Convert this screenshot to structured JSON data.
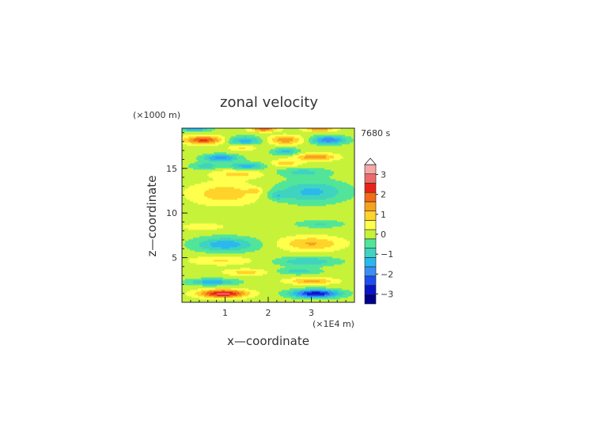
{
  "chart_data": {
    "type": "heatmap",
    "title": "zonal velocity",
    "time_label": "7680 s",
    "xlabel": "x—coordinate",
    "ylabel": "z—coordinate",
    "x_unit": "(×1E4 m)",
    "y_unit": "(×1000 m)",
    "xlim": [
      0,
      4
    ],
    "ylim": [
      0,
      19.5
    ],
    "x_ticks": [
      {
        "value": 1,
        "label": "1"
      },
      {
        "value": 2,
        "label": "2"
      },
      {
        "value": 3,
        "label": "3"
      }
    ],
    "y_ticks": [
      {
        "value": 5,
        "label": "5"
      },
      {
        "value": 10,
        "label": "10"
      },
      {
        "value": 15,
        "label": "15"
      }
    ],
    "colorbar": {
      "levels": [
        -3.5,
        -3,
        -2.5,
        -2,
        -1.5,
        -1,
        -0.5,
        0,
        0.5,
        1,
        1.5,
        2,
        2.5,
        3,
        3.5
      ],
      "colors": [
        "#00008b",
        "#0a14c8",
        "#1e4ef0",
        "#3c8ef5",
        "#2ab8ef",
        "#3fd3c0",
        "#52e59a",
        "#c6f23a",
        "#ffff4d",
        "#ffd32a",
        "#f7a21f",
        "#f46a17",
        "#e8241a",
        "#ee6a6a",
        "#f5a8a8"
      ],
      "tick_labels": [
        {
          "value": 3,
          "label": "3"
        },
        {
          "value": 2,
          "label": "2"
        },
        {
          "value": 1,
          "label": "1"
        },
        {
          "value": 0,
          "label": "0"
        },
        {
          "value": -1,
          "label": "−1"
        },
        {
          "value": -2,
          "label": "−2"
        },
        {
          "value": -3,
          "label": "−3"
        }
      ]
    },
    "blobs": [
      {
        "x": 0.95,
        "z": 1.0,
        "rx": 0.55,
        "rz": 0.45,
        "v": 3.0
      },
      {
        "x": 3.1,
        "z": 1.0,
        "rx": 0.55,
        "rz": 0.45,
        "v": -3.2
      },
      {
        "x": 0.7,
        "z": 2.3,
        "rx": 0.55,
        "rz": 0.35,
        "v": -1.6
      },
      {
        "x": 3.0,
        "z": 2.4,
        "rx": 0.55,
        "rz": 0.35,
        "v": 1.4
      },
      {
        "x": 1.5,
        "z": 3.4,
        "rx": 0.5,
        "rz": 0.35,
        "v": 1.0
      },
      {
        "x": 2.7,
        "z": 3.5,
        "rx": 0.5,
        "rz": 0.35,
        "v": -1.0
      },
      {
        "x": 0.9,
        "z": 4.7,
        "rx": 0.7,
        "rz": 0.5,
        "v": 0.8
      },
      {
        "x": 2.9,
        "z": 4.6,
        "rx": 0.7,
        "rz": 0.5,
        "v": -1.2
      },
      {
        "x": 1.0,
        "z": 6.5,
        "rx": 0.7,
        "rz": 0.8,
        "v": -1.6
      },
      {
        "x": 3.0,
        "z": 6.6,
        "rx": 0.7,
        "rz": 0.8,
        "v": 1.3
      },
      {
        "x": 0.5,
        "z": 8.5,
        "rx": 0.5,
        "rz": 0.4,
        "v": 0.6
      },
      {
        "x": 3.2,
        "z": 8.8,
        "rx": 0.55,
        "rz": 0.4,
        "v": -0.8
      },
      {
        "x": 1.0,
        "z": 12.2,
        "rx": 0.8,
        "rz": 1.2,
        "v": 1.1
      },
      {
        "x": 3.0,
        "z": 12.4,
        "rx": 0.8,
        "rz": 1.2,
        "v": -1.4
      },
      {
        "x": 1.3,
        "z": 14.4,
        "rx": 0.6,
        "rz": 0.5,
        "v": 0.9
      },
      {
        "x": 2.8,
        "z": 14.6,
        "rx": 0.6,
        "rz": 0.5,
        "v": -0.9
      },
      {
        "x": 1.5,
        "z": 15.3,
        "rx": 0.4,
        "rz": 0.4,
        "v": -1.6
      },
      {
        "x": 2.4,
        "z": 15.6,
        "rx": 0.35,
        "rz": 0.4,
        "v": 1.0
      },
      {
        "x": 0.55,
        "z": 15.3,
        "rx": 0.35,
        "rz": 0.4,
        "v": -1.0
      },
      {
        "x": 0.9,
        "z": 16.2,
        "rx": 0.4,
        "rz": 0.4,
        "v": -2.0
      },
      {
        "x": 3.1,
        "z": 16.3,
        "rx": 0.45,
        "rz": 0.4,
        "v": 1.8
      },
      {
        "x": 2.4,
        "z": 16.9,
        "rx": 0.3,
        "rz": 0.4,
        "v": -1.4
      },
      {
        "x": 1.4,
        "z": 17.4,
        "rx": 0.3,
        "rz": 0.4,
        "v": 1.0
      },
      {
        "x": 0.5,
        "z": 18.2,
        "rx": 0.45,
        "rz": 0.45,
        "v": 2.4
      },
      {
        "x": 1.45,
        "z": 18.1,
        "rx": 0.4,
        "rz": 0.5,
        "v": -1.6
      },
      {
        "x": 2.4,
        "z": 18.2,
        "rx": 0.4,
        "rz": 0.5,
        "v": 1.6
      },
      {
        "x": 3.4,
        "z": 18.2,
        "rx": 0.4,
        "rz": 0.45,
        "v": -2.2
      },
      {
        "x": 0.3,
        "z": 19.4,
        "rx": 0.35,
        "rz": 0.25,
        "v": -1.6
      },
      {
        "x": 1.9,
        "z": 19.4,
        "rx": 0.3,
        "rz": 0.25,
        "v": 2.0
      },
      {
        "x": 3.2,
        "z": 19.4,
        "rx": 0.35,
        "rz": 0.25,
        "v": 1.6
      },
      {
        "x": 1.7,
        "z": 12.5,
        "rx": 0.15,
        "rz": 0.3,
        "v": 0.8
      },
      {
        "x": 2.2,
        "z": 12.0,
        "rx": 0.2,
        "rz": 0.5,
        "v": -0.9
      }
    ]
  }
}
